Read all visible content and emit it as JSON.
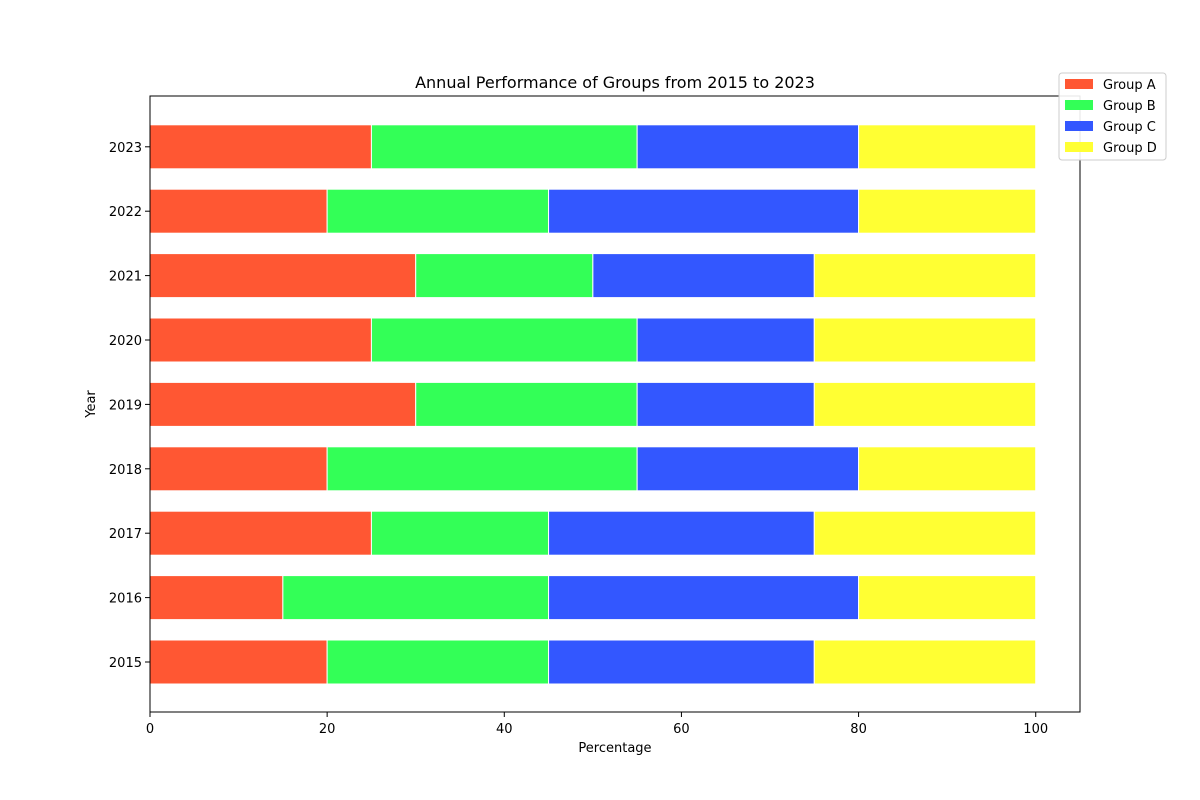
{
  "chart_data": {
    "type": "bar",
    "orientation": "horizontal",
    "stacked": true,
    "title": "Annual Performance of Groups from 2015 to 2023",
    "xlabel": "Percentage",
    "ylabel": "Year",
    "xlim": [
      0,
      105
    ],
    "xticks": [
      "0",
      "20",
      "40",
      "60",
      "80",
      "100"
    ],
    "grid": false,
    "legend_position": "top-right",
    "categories": [
      "2015",
      "2016",
      "2017",
      "2018",
      "2019",
      "2020",
      "2021",
      "2022",
      "2023"
    ],
    "series": [
      {
        "name": "Group A",
        "color": "#ff5733",
        "values": [
          20,
          15,
          25,
          20,
          30,
          25,
          30,
          20,
          25
        ]
      },
      {
        "name": "Group B",
        "color": "#33ff57",
        "values": [
          25,
          30,
          20,
          35,
          25,
          30,
          20,
          25,
          30
        ]
      },
      {
        "name": "Group C",
        "color": "#3357ff",
        "values": [
          30,
          35,
          30,
          25,
          20,
          20,
          25,
          35,
          25
        ]
      },
      {
        "name": "Group D",
        "color": "#ffff33",
        "values": [
          25,
          20,
          25,
          20,
          25,
          25,
          25,
          20,
          20
        ]
      }
    ]
  }
}
